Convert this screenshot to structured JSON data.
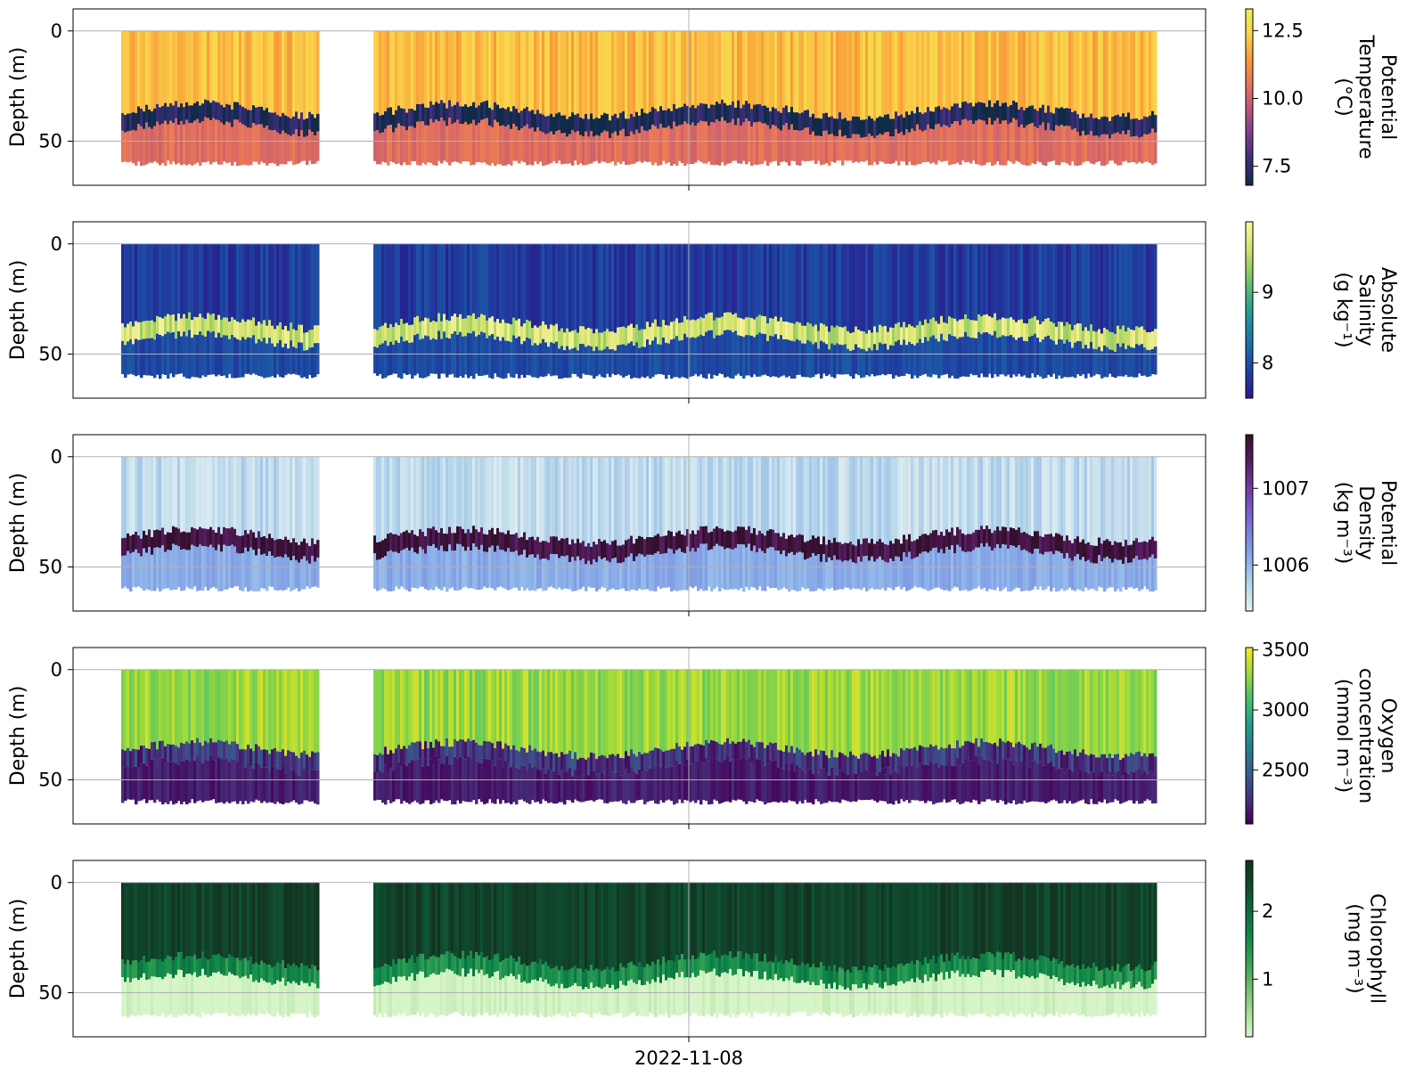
{
  "chart_data": [
    {
      "type": "heatmap",
      "ylabel": "Depth (m)",
      "yticks": [
        0,
        50
      ],
      "ylim": [
        70,
        -10
      ],
      "x_date_tick": "",
      "grid": true,
      "colorbar": {
        "label_lines": [
          "Potential",
          "Temperature",
          "(°C)"
        ],
        "ticks": [
          12.5,
          10.0,
          7.5
        ],
        "tick_labels": [
          "12.5",
          "10.0",
          "7.5"
        ],
        "range": [
          6.8,
          13.3
        ],
        "colormap": [
          "#0f2b47",
          "#3b2d7a",
          "#7a3c8c",
          "#b85676",
          "#e7735c",
          "#f89b3a",
          "#fbd34a",
          "#e8f05a"
        ]
      }
    },
    {
      "type": "heatmap",
      "ylabel": "Depth (m)",
      "yticks": [
        0,
        50
      ],
      "ylim": [
        70,
        -10
      ],
      "x_date_tick": "",
      "grid": true,
      "colorbar": {
        "label_lines": [
          "Absolute",
          "Salinity",
          "(g kg⁻¹)"
        ],
        "ticks": [
          9,
          8
        ],
        "tick_labels": [
          "9",
          "8"
        ],
        "range": [
          7.5,
          10.0
        ],
        "colormap": [
          "#2a1a8c",
          "#1f3ea0",
          "#1b6aa8",
          "#1e8f9e",
          "#3fae83",
          "#8ccb63",
          "#d8e46f",
          "#fdf5a0"
        ]
      }
    },
    {
      "type": "heatmap",
      "ylabel": "Depth (m)",
      "yticks": [
        0,
        50
      ],
      "ylim": [
        70,
        -10
      ],
      "x_date_tick": "",
      "grid": true,
      "colorbar": {
        "label_lines": [
          "Potential",
          "Density",
          "(kg m⁻³)"
        ],
        "ticks": [
          1007,
          1006
        ],
        "tick_labels": [
          "1007",
          "1006"
        ],
        "range": [
          1005.4,
          1007.7
        ],
        "colormap": [
          "#e6f1f3",
          "#b9d8ea",
          "#8ab0e8",
          "#7b86e0",
          "#7a5bc9",
          "#6f3899",
          "#541b5c",
          "#33102d"
        ]
      }
    },
    {
      "type": "heatmap",
      "ylabel": "Depth (m)",
      "yticks": [
        0,
        50
      ],
      "ylim": [
        70,
        -10
      ],
      "x_date_tick": "",
      "grid": true,
      "colorbar": {
        "label_lines": [
          "Oxygen",
          "concentration",
          "(mmol m⁻³)"
        ],
        "ticks": [
          3500,
          3000,
          2500
        ],
        "tick_labels": [
          "3500",
          "3000",
          "2500"
        ],
        "range": [
          2050,
          3520
        ],
        "colormap": [
          "#440154",
          "#46327e",
          "#365c8d",
          "#277f8e",
          "#1fa187",
          "#4ac16d",
          "#a0da39",
          "#fde725"
        ]
      }
    },
    {
      "type": "heatmap",
      "ylabel": "Depth (m)",
      "yticks": [
        0,
        50
      ],
      "ylim": [
        70,
        -10
      ],
      "x_date_tick": "2022-11-08",
      "grid": true,
      "colorbar": {
        "label_lines": [
          "Chlorophyll",
          "(mg m⁻³)"
        ],
        "ticks": [
          2,
          1
        ],
        "tick_labels": [
          "2",
          "1"
        ],
        "range": [
          0.15,
          2.75
        ],
        "colormap": [
          "#d7f5c9",
          "#a5dc93",
          "#6cbd6b",
          "#36a055",
          "#0f8a4a",
          "#0b6b3f",
          "#0f4a2e",
          "#15301f"
        ]
      }
    }
  ]
}
